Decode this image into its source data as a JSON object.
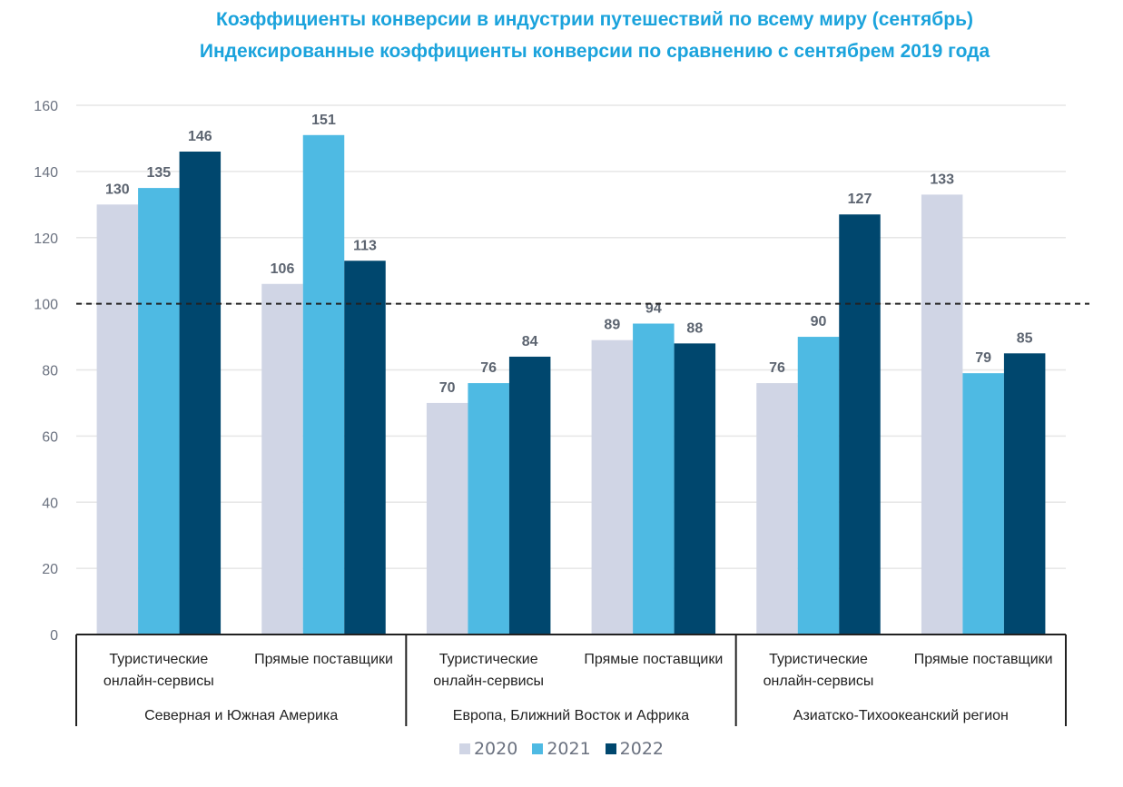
{
  "chart_data": {
    "type": "bar",
    "title": "Коэффициенты конверсии в индустрии путешествий по всему миру (сентябрь)",
    "subtitle": "Индексированные коэффициенты конверсии по сравнению с сентябрем 2019 года",
    "xlabel": "",
    "ylabel": "",
    "ylim": [
      0,
      160
    ],
    "yticks": [
      0,
      20,
      40,
      60,
      80,
      100,
      120,
      140,
      160
    ],
    "grid": true,
    "reference_line": {
      "value": 100,
      "style": "dashed"
    },
    "regions": [
      {
        "label": "Северная и Южная Америка",
        "categories": [
          "Туристические онлайн-сервисы",
          "Прямые поставщики"
        ]
      },
      {
        "label": "Европа, Ближний Восток и Африка",
        "categories": [
          "Туристические онлайн-сервисы",
          "Прямые поставщики"
        ]
      },
      {
        "label": "Азиатско-Тихоокеанский регион",
        "categories": [
          "Туристические онлайн-сервисы",
          "Прямые поставщики"
        ]
      }
    ],
    "categories": [
      "Туристические онлайн-сервисы",
      "Прямые поставщики",
      "Туристические онлайн-сервисы",
      "Прямые поставщики",
      "Туристические онлайн-сервисы",
      "Прямые поставщики"
    ],
    "category_lines": [
      [
        "Туристические",
        "онлайн-сервисы"
      ],
      [
        "Прямые поставщики"
      ],
      [
        "Туристические",
        "онлайн-сервисы"
      ],
      [
        "Прямые поставщики"
      ],
      [
        "Туристические",
        "онлайн-сервисы"
      ],
      [
        "Прямые поставщики"
      ]
    ],
    "series": [
      {
        "name": "2020",
        "color": "#d0d5e5",
        "values": [
          130,
          106,
          70,
          89,
          76,
          133
        ]
      },
      {
        "name": "2021",
        "color": "#4ebae3",
        "values": [
          135,
          151,
          76,
          94,
          90,
          79
        ]
      },
      {
        "name": "2022",
        "color": "#00476e",
        "values": [
          146,
          113,
          84,
          88,
          127,
          85
        ]
      }
    ],
    "legend_position": "bottom"
  }
}
